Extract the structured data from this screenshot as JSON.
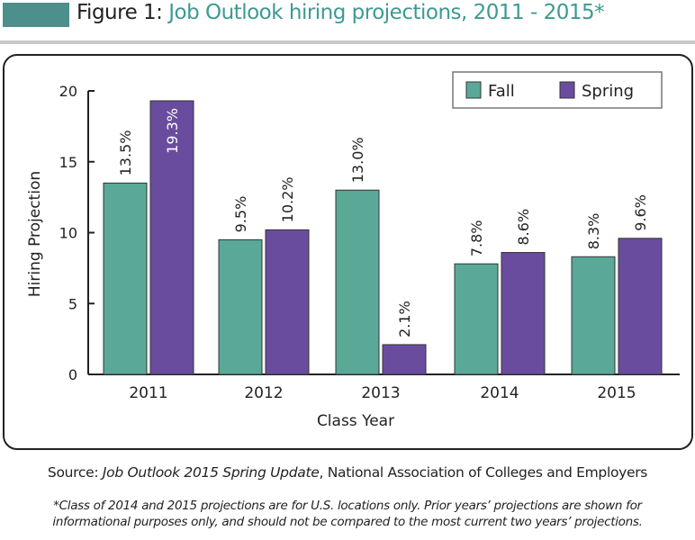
{
  "header": {
    "figure_label": "Figure 1:",
    "title": "Job Outlook hiring projections, 2011 - 2015*"
  },
  "colors": {
    "header_block": "#4d8f8b",
    "title_text": "#3c9a93",
    "fall": "#5aa898",
    "spring": "#6a4c9e"
  },
  "chart_data": {
    "type": "bar",
    "categories": [
      "2011",
      "2012",
      "2013",
      "2014",
      "2015"
    ],
    "series": [
      {
        "name": "Fall",
        "values": [
          13.5,
          9.5,
          13.0,
          7.8,
          8.3
        ],
        "labels": [
          "13.5%",
          "9.5%",
          "13.0%",
          "7.8%",
          "8.3%"
        ]
      },
      {
        "name": "Spring",
        "values": [
          19.3,
          10.2,
          2.1,
          8.6,
          9.6
        ],
        "labels": [
          "19.3%",
          "10.2%",
          "2.1%",
          "8.6%",
          "9.6%"
        ]
      }
    ],
    "xlabel": "Class Year",
    "ylabel": "Hiring Projection",
    "ylim": [
      0,
      20
    ],
    "yticks": [
      "0",
      "5",
      "10",
      "15",
      "20"
    ],
    "legend": "top-right",
    "grid": false
  },
  "footer": {
    "source_prefix": "Source: ",
    "source_title": "Job Outlook 2015 Spring Update",
    "source_rest": ", National Association of Colleges and Employers",
    "note_line1": "*Class of 2014 and 2015 projections are for U.S. locations only. Prior years’ projections are shown for",
    "note_line2": "informational purposes only, and should not be compared to the most current two years’ projections."
  }
}
